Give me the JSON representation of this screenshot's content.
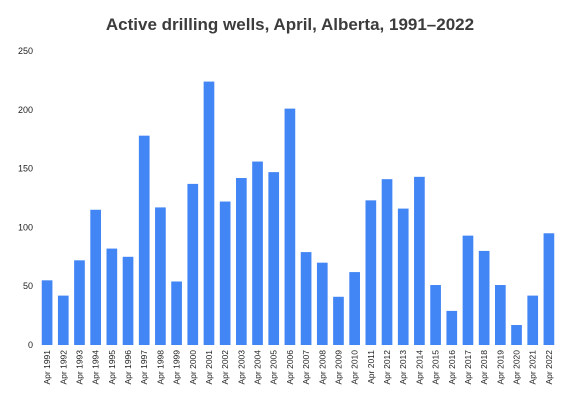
{
  "chart_data": {
    "type": "bar",
    "title": "Active drilling wells, April, Alberta, 1991–2022",
    "xlabel": "",
    "ylabel": "",
    "categories": [
      "Apr 1991",
      "Apr 1992",
      "Apr 1993",
      "Apr 1994",
      "Apr 1995",
      "Apr 1996",
      "Apr 1997",
      "Apr 1998",
      "Apr 1999",
      "Apr 2000",
      "Apr 2001",
      "Apr 2002",
      "Apr 2003",
      "Apr 2004",
      "Apr 2005",
      "Apr 2006",
      "Apr 2007",
      "Apr 2008",
      "Apr 2009",
      "Apr 2010",
      "Apr 2011",
      "Apr 2012",
      "Apr 2013",
      "Apr 2014",
      "Apr 2015",
      "Apr 2016",
      "Apr 2017",
      "Apr 2018",
      "Apr 2019",
      "Apr 2020",
      "Apr 2021",
      "Apr 2022"
    ],
    "values": [
      55,
      42,
      72,
      115,
      82,
      75,
      178,
      117,
      54,
      137,
      224,
      122,
      142,
      156,
      147,
      201,
      79,
      70,
      41,
      62,
      123,
      141,
      116,
      143,
      51,
      29,
      93,
      80,
      51,
      17,
      42,
      95
    ],
    "ylim": [
      0,
      250
    ],
    "yticks": [
      0,
      50,
      100,
      150,
      200,
      250
    ],
    "grid": false,
    "legend": "none",
    "bar_color": "#4285f4"
  }
}
